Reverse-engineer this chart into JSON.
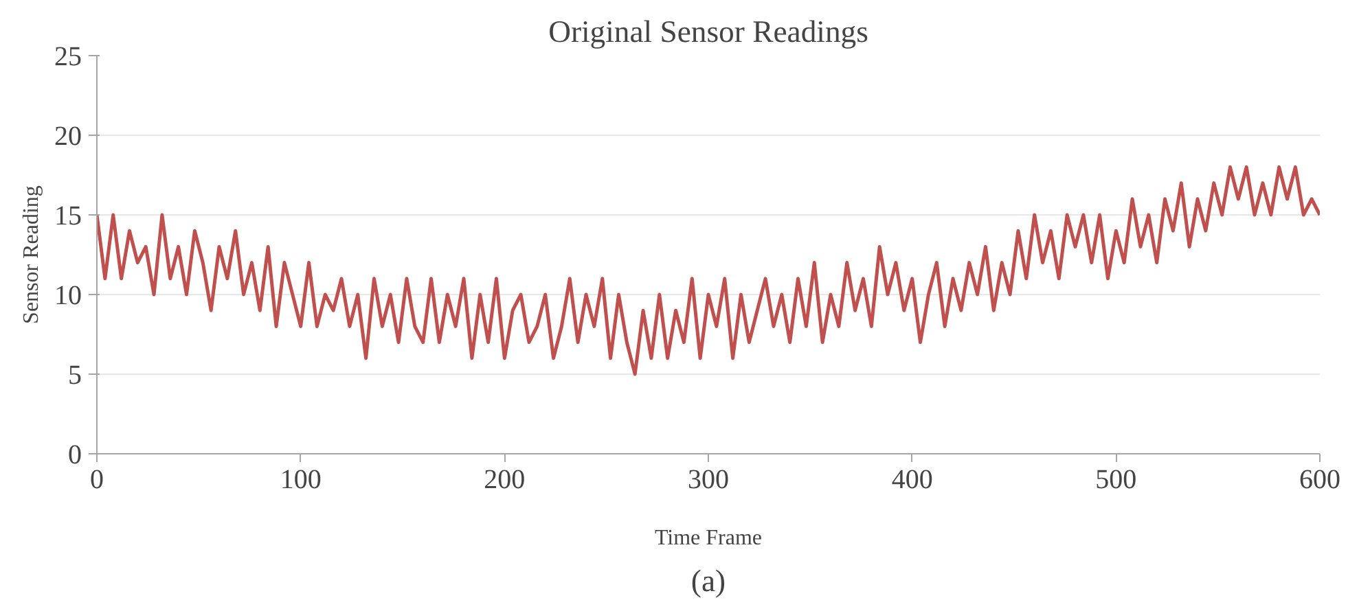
{
  "chart_data": {
    "type": "line",
    "title": "Original Sensor Readings",
    "xlabel": "Time Frame",
    "ylabel": "Sensor Reading",
    "annotations": [
      "(a)"
    ],
    "xlim": [
      0,
      600
    ],
    "xticks": [
      0,
      100,
      200,
      300,
      400,
      500,
      600
    ],
    "ylim": [
      0,
      25
    ],
    "yticks": [
      0,
      5,
      10,
      15,
      20,
      25
    ],
    "grid": "y",
    "marker": "none",
    "line_style": "solid",
    "x": [
      0,
      4,
      8,
      12,
      16,
      20,
      24,
      28,
      32,
      36,
      40,
      44,
      48,
      52,
      56,
      60,
      64,
      68,
      72,
      76,
      80,
      84,
      88,
      92,
      96,
      100,
      104,
      108,
      112,
      116,
      120,
      124,
      128,
      132,
      136,
      140,
      144,
      148,
      152,
      156,
      160,
      164,
      168,
      172,
      176,
      180,
      184,
      188,
      192,
      196,
      200,
      204,
      208,
      212,
      216,
      220,
      224,
      228,
      232,
      236,
      240,
      244,
      248,
      252,
      256,
      260,
      264,
      268,
      272,
      276,
      280,
      284,
      288,
      292,
      296,
      300,
      304,
      308,
      312,
      316,
      320,
      324,
      328,
      332,
      336,
      340,
      344,
      348,
      352,
      356,
      360,
      364,
      368,
      372,
      376,
      380,
      384,
      388,
      392,
      396,
      400,
      404,
      408,
      412,
      416,
      420,
      424,
      428,
      432,
      436,
      440,
      444,
      448,
      452,
      456,
      460,
      464,
      468,
      472,
      476,
      480,
      484,
      488,
      492,
      496,
      500,
      504,
      508,
      512,
      516,
      520,
      524,
      528,
      532,
      536,
      540,
      544,
      548,
      552,
      556,
      560,
      564,
      568,
      572,
      576,
      580,
      584,
      588,
      592,
      596,
      600
    ],
    "series": [
      {
        "color": "#c0504d",
        "values": [
          15,
          11,
          15,
          11,
          14,
          12,
          13,
          10,
          15,
          11,
          13,
          10,
          14,
          12,
          9,
          13,
          11,
          14,
          10,
          12,
          9,
          13,
          8,
          12,
          10,
          8,
          12,
          8,
          10,
          9,
          11,
          8,
          10,
          6,
          11,
          8,
          10,
          7,
          11,
          8,
          7,
          11,
          7,
          10,
          8,
          11,
          6,
          10,
          7,
          11,
          6,
          9,
          10,
          7,
          8,
          10,
          6,
          8,
          11,
          7,
          10,
          8,
          11,
          6,
          10,
          7,
          5,
          9,
          6,
          10,
          6,
          9,
          7,
          11,
          6,
          10,
          8,
          11,
          6,
          10,
          7,
          9,
          11,
          8,
          10,
          7,
          11,
          8,
          12,
          7,
          10,
          8,
          12,
          9,
          11,
          8,
          13,
          10,
          12,
          9,
          11,
          7,
          10,
          12,
          8,
          11,
          9,
          12,
          10,
          13,
          9,
          12,
          10,
          14,
          11,
          15,
          12,
          14,
          11,
          15,
          13,
          15,
          12,
          15,
          11,
          14,
          12,
          16,
          13,
          15,
          12,
          16,
          14,
          17,
          13,
          16,
          14,
          17,
          15,
          18,
          16,
          18,
          15,
          17,
          15,
          18,
          16,
          18,
          15,
          16,
          15
        ]
      }
    ]
  }
}
